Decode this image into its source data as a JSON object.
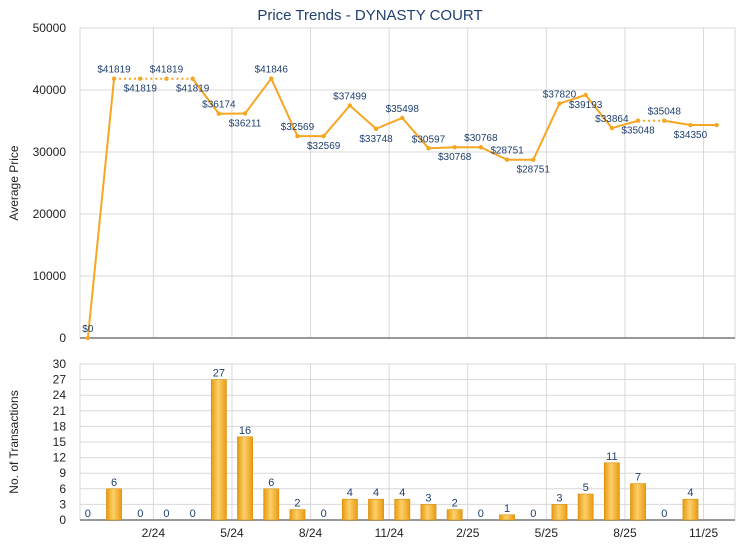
{
  "title": "Price Trends - DYNASTY COURT",
  "colors": {
    "line": "#f5a623",
    "bar": "#f0a81c",
    "grid": "#d8d8d8",
    "title": "#1f3f6e"
  },
  "chart_data": [
    {
      "type": "line",
      "title": "Price Trends - DYNASTY COURT",
      "ylabel": "Average Price",
      "ylim": [
        0,
        50000
      ],
      "yticks": [
        0,
        10000,
        20000,
        30000,
        40000,
        50000
      ],
      "grid": true,
      "x_index": [
        0,
        1,
        2,
        3,
        4,
        5,
        6,
        7,
        8,
        9,
        10,
        11,
        12,
        13,
        14,
        15,
        16,
        17,
        18,
        19,
        20,
        21,
        22,
        23,
        24
      ],
      "values": [
        0,
        41819,
        41819,
        41819,
        41819,
        36174,
        36211,
        41846,
        32569,
        32569,
        37499,
        33748,
        35498,
        30597,
        30768,
        30768,
        28751,
        28751,
        37820,
        39193,
        33864,
        35048,
        35048,
        34350,
        34350
      ],
      "labels": [
        "$0",
        "$41819",
        "$41819",
        "$41819",
        "$41819",
        "$36174",
        "$36211",
        "$41846",
        "$32569",
        "$32569",
        "$37499",
        "$33748",
        "$35498",
        "$30597",
        "$30768",
        "$30768",
        "$28751",
        "$28751",
        "$37820",
        "$39193",
        "$33864",
        "$35048",
        "$35048",
        "$34350",
        ""
      ],
      "label_pos": [
        "above",
        "above",
        "below",
        "above",
        "below",
        "above",
        "below",
        "above",
        "above",
        "below",
        "above",
        "below",
        "above",
        "above",
        "below",
        "above",
        "above",
        "below",
        "above",
        "below",
        "above",
        "below",
        "above",
        "below",
        ""
      ],
      "dotted_segments": [
        1,
        2,
        3,
        21
      ]
    },
    {
      "type": "bar",
      "ylabel": "No. of Transactions",
      "ylim": [
        0,
        30
      ],
      "yticks": [
        0,
        3,
        6,
        9,
        12,
        15,
        18,
        21,
        24,
        27,
        30
      ],
      "grid": true,
      "x_index": [
        0,
        1,
        2,
        3,
        4,
        5,
        6,
        7,
        8,
        9,
        10,
        11,
        12,
        13,
        14,
        15,
        16,
        17,
        18,
        19,
        20,
        21,
        22,
        23,
        24
      ],
      "values": [
        0,
        6,
        0,
        0,
        0,
        27,
        16,
        6,
        2,
        0,
        4,
        4,
        4,
        3,
        2,
        0,
        1,
        0,
        3,
        5,
        11,
        7,
        0,
        4,
        0
      ],
      "value_labels": [
        "0",
        "6",
        "0",
        "0",
        "0",
        "27",
        "16",
        "6",
        "2",
        "0",
        "4",
        "4",
        "4",
        "3",
        "2",
        "0",
        "1",
        "0",
        "3",
        "5",
        "11",
        "7",
        "0",
        "4",
        ""
      ],
      "xtick_labels": [
        "2/24",
        "5/24",
        "8/24",
        "11/24",
        "2/25",
        "5/25",
        "8/25",
        "11/25"
      ]
    }
  ]
}
